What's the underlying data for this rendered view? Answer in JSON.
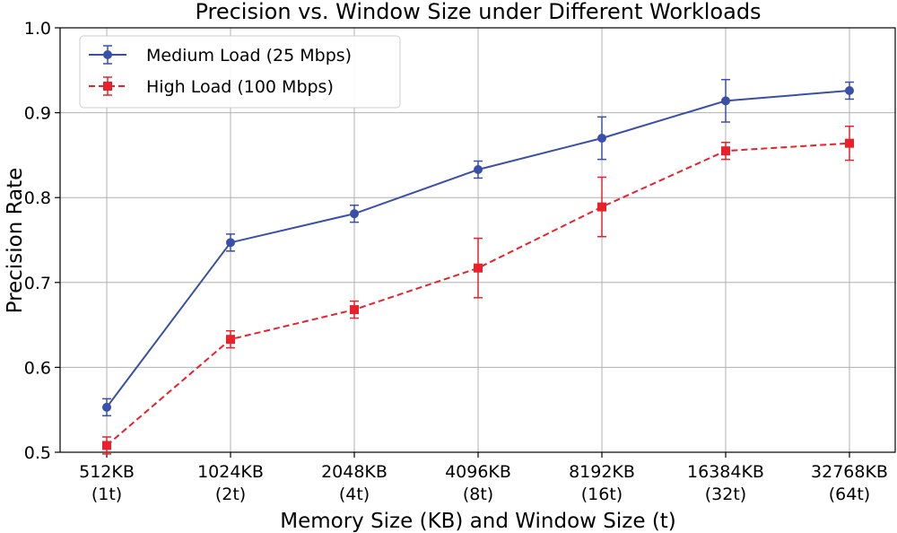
{
  "chart_data": {
    "type": "line",
    "title": "Precision vs. Window Size under Different Workloads",
    "xlabel": "Memory Size (KB) and Window Size (t)",
    "ylabel": "Precision Rate",
    "categories": [
      [
        "512KB",
        "(1t)"
      ],
      [
        "1024KB",
        "(2t)"
      ],
      [
        "2048KB",
        "(4t)"
      ],
      [
        "4096KB",
        "(8t)"
      ],
      [
        "8192KB",
        "(16t)"
      ],
      [
        "16384KB",
        "(32t)"
      ],
      [
        "32768KB",
        "(64t)"
      ]
    ],
    "ylim": [
      0.5,
      1.0
    ],
    "yticks": [
      "0.5",
      "0.6",
      "0.7",
      "0.8",
      "0.9",
      "1.0"
    ],
    "grid": true,
    "legend_position": "top-left",
    "series": [
      {
        "name": "Medium Load (25 Mbps)",
        "color": "#3a4fa8",
        "marker": "circle",
        "line_style": "solid",
        "values": [
          0.553,
          0.747,
          0.781,
          0.833,
          0.87,
          0.914,
          0.926
        ],
        "errors": [
          0.01,
          0.01,
          0.01,
          0.01,
          0.025,
          0.025,
          0.01
        ]
      },
      {
        "name": "High Load (100 Mbps)",
        "color": "#e8212b",
        "marker": "square",
        "line_style": "dashed",
        "values": [
          0.508,
          0.633,
          0.668,
          0.717,
          0.789,
          0.855,
          0.864
        ],
        "errors": [
          0.01,
          0.01,
          0.01,
          0.035,
          0.035,
          0.01,
          0.02
        ]
      }
    ]
  }
}
